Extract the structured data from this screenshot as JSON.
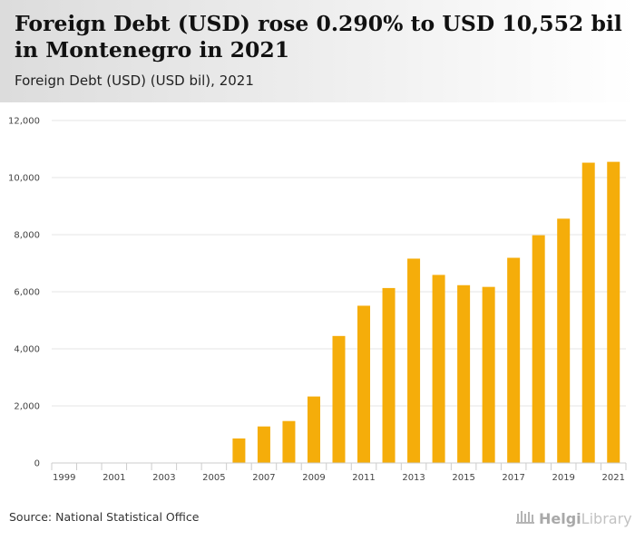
{
  "header": {
    "title": "Foreign Debt (USD) rose 0.290% to USD 10,552 bil in Montenegro in 2021",
    "subtitle": "Foreign Debt (USD) (USD bil), 2021"
  },
  "footer": {
    "source": "Source: National Statistical Office",
    "logo_helgi": "Helgi",
    "logo_library": "Library"
  },
  "colors": {
    "bar": "#f5ad0a",
    "grid": "#e6e6e6",
    "axis_text": "#444444"
  },
  "chart_data": {
    "type": "bar",
    "categories": [
      "1999",
      "2000",
      "2001",
      "2002",
      "2003",
      "2004",
      "2005",
      "2006",
      "2007",
      "2008",
      "2009",
      "2010",
      "2011",
      "2012",
      "2013",
      "2014",
      "2015",
      "2016",
      "2017",
      "2018",
      "2019",
      "2020",
      "2021"
    ],
    "values": [
      0,
      0,
      0,
      0,
      0,
      0,
      0,
      860,
      1280,
      1470,
      2330,
      4450,
      5510,
      6130,
      7160,
      6590,
      6230,
      6170,
      7190,
      7980,
      8560,
      10522,
      10552
    ],
    "x_tick_labels": [
      "1999",
      "2001",
      "2003",
      "2005",
      "2007",
      "2009",
      "2011",
      "2013",
      "2015",
      "2017",
      "2019",
      "2021"
    ],
    "y_ticks": [
      0,
      2000,
      4000,
      6000,
      8000,
      10000,
      12000
    ],
    "y_tick_labels": [
      "0",
      "2,000",
      "4,000",
      "6,000",
      "8,000",
      "10,000",
      "12,000"
    ],
    "ylim": [
      0,
      12000
    ],
    "grid": true,
    "title": "",
    "xlabel": "",
    "ylabel": ""
  }
}
